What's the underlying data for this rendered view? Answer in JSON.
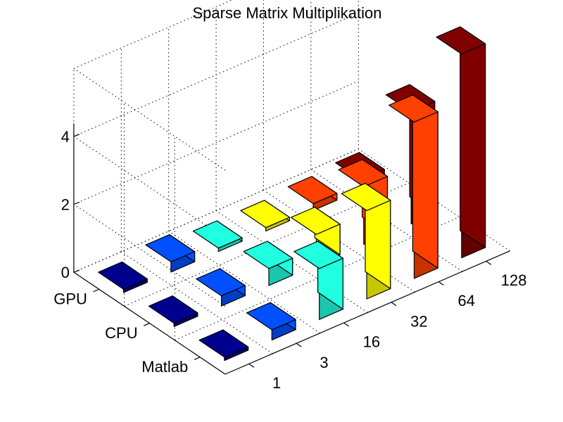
{
  "chart_data": {
    "type": "bar3d",
    "title": "Sparse Matrix Multiplikation",
    "categories": [
      "1",
      "3",
      "16",
      "32",
      "64",
      "128"
    ],
    "series": [
      {
        "name": "Matlab",
        "values": [
          0.1,
          0.3,
          1.5,
          2.6,
          4.6,
          6.0
        ]
      },
      {
        "name": "CPU",
        "values": [
          0.1,
          0.3,
          0.5,
          0.9,
          1.7,
          3.3
        ]
      },
      {
        "name": "GPU",
        "values": [
          0.1,
          0.3,
          0.1,
          0.1,
          0.2,
          0.3
        ]
      }
    ],
    "bar_colors": [
      "#00008f",
      "#0050ff",
      "#20ffdf",
      "#ffff00",
      "#ff4000",
      "#800000"
    ],
    "zlim": [
      0,
      6
    ],
    "zticks": [
      "0",
      "2",
      "4"
    ],
    "grid": true,
    "xlabel": "",
    "ylabel": "",
    "zlabel": ""
  }
}
